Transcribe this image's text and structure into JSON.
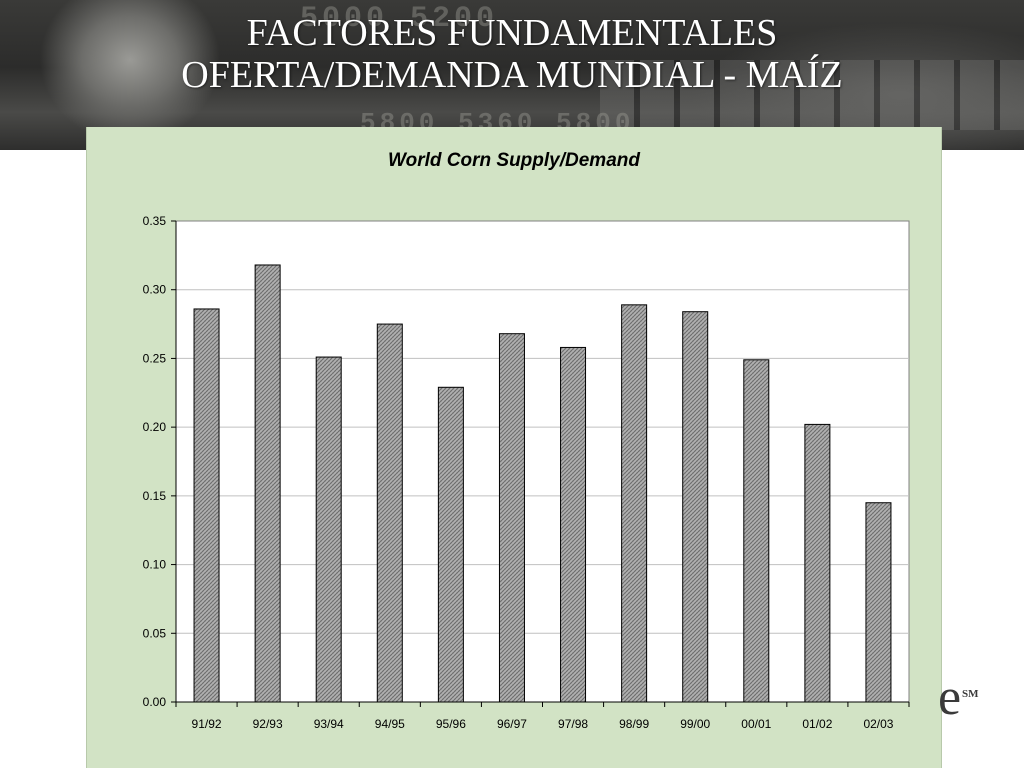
{
  "slide": {
    "title_line1": "FACTORES FUNDAMENTALES",
    "title_line2": "OFERTA/DEMANDA MUNDIAL - MAÍZ",
    "banner_ticker_top": "5000 5200",
    "banner_ticker_bottom": "5800 5360 5800"
  },
  "chart_data": {
    "type": "bar",
    "title": "World Corn Supply/Demand",
    "xlabel": "",
    "ylabel": "",
    "categories": [
      "91/92",
      "92/93",
      "93/94",
      "94/95",
      "95/96",
      "96/97",
      "97/98",
      "98/99",
      "99/00",
      "00/01",
      "01/02",
      "02/03"
    ],
    "values": [
      0.286,
      0.318,
      0.251,
      0.275,
      0.229,
      0.268,
      0.258,
      0.289,
      0.284,
      0.249,
      0.202,
      0.145
    ],
    "ylim": [
      0,
      0.35
    ],
    "yticks": [
      "0.00",
      "0.05",
      "0.10",
      "0.15",
      "0.20",
      "0.25",
      "0.30",
      "0.35"
    ],
    "grid": true,
    "legend": "none",
    "colors": {
      "panel_background": "#d2e3c5",
      "plot_background": "#ffffff",
      "bar_fill": "#a8a8a8",
      "bar_border": "#000000",
      "gridline": "#c0c0c0"
    }
  },
  "logo": {
    "letter": "e",
    "mark": "SM"
  }
}
